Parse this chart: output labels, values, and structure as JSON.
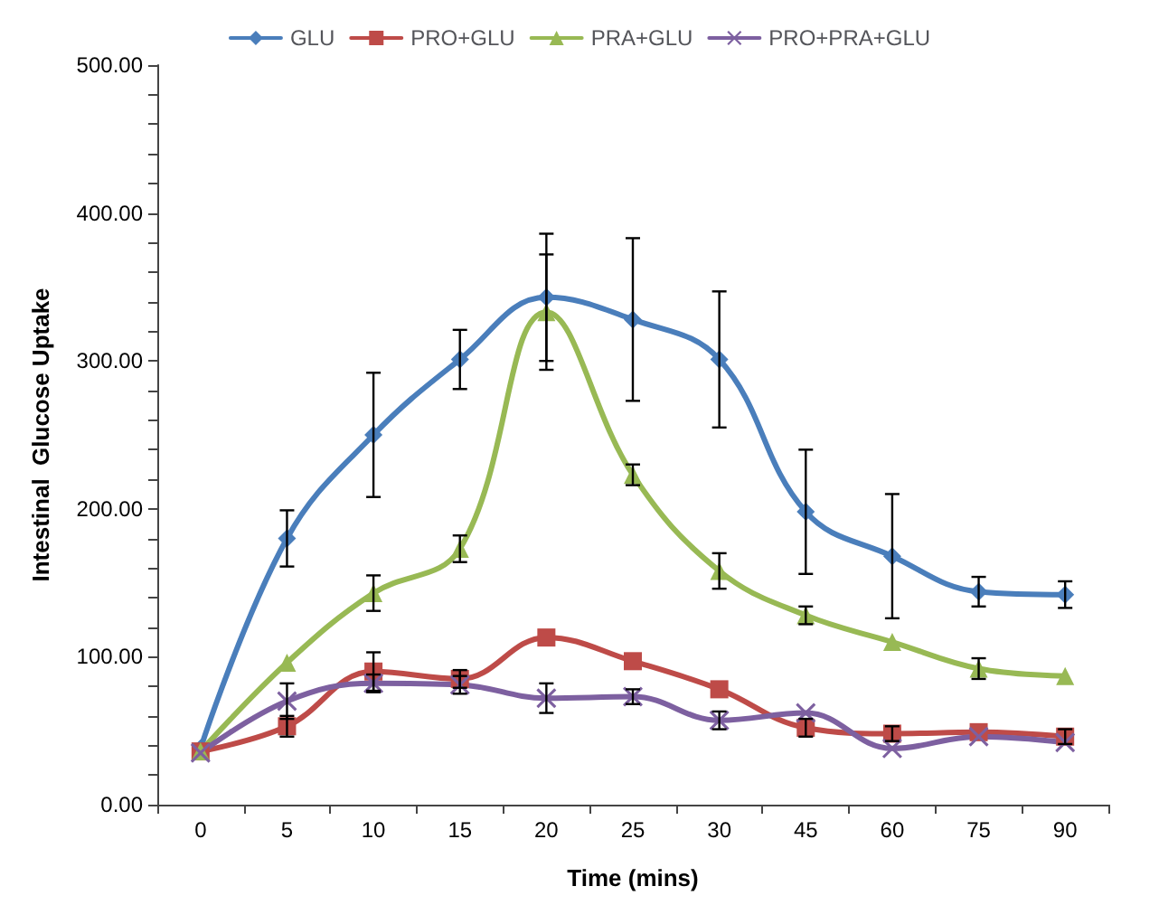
{
  "chart_data": {
    "type": "line",
    "xlabel": "Time (mins)",
    "ylabel": "Intestinal  Glucose Uptake",
    "categories": [
      "0",
      "5",
      "10",
      "15",
      "20",
      "25",
      "30",
      "45",
      "60",
      "75",
      "90"
    ],
    "series": [
      {
        "name": "GLU",
        "color": "#4a7ebb",
        "marker": "diamond",
        "values": [
          38,
          180,
          250,
          301,
          343,
          328,
          301,
          198,
          168,
          144,
          142
        ],
        "errors": [
          null,
          19,
          42,
          20,
          43,
          55,
          46,
          42,
          42,
          10,
          9
        ]
      },
      {
        "name": "PRO+GLU",
        "color": "#be4b48",
        "marker": "square",
        "values": [
          36,
          53,
          90,
          85,
          113,
          97,
          78,
          52,
          48,
          49,
          46
        ],
        "errors": [
          null,
          7,
          13,
          6,
          null,
          null,
          null,
          6,
          5,
          null,
          5
        ]
      },
      {
        "name": "PRA+GLU",
        "color": "#98b954",
        "marker": "triangle",
        "values": [
          36,
          96,
          143,
          173,
          333,
          223,
          158,
          128,
          110,
          92,
          87
        ],
        "errors": [
          null,
          null,
          12,
          9,
          39,
          7,
          12,
          6,
          null,
          7,
          null
        ]
      },
      {
        "name": "PRO+PRA+GLU",
        "color": "#7d60a0",
        "marker": "cross",
        "values": [
          35,
          70,
          82,
          81,
          72,
          73,
          57,
          62,
          38,
          46,
          42
        ],
        "errors": [
          null,
          12,
          6,
          6,
          10,
          5,
          6,
          null,
          null,
          null,
          null
        ]
      }
    ],
    "ylim": [
      0,
      500
    ],
    "yticks": [
      {
        "value": 0,
        "label": "0.00"
      },
      {
        "value": 20,
        "label": null
      },
      {
        "value": 40,
        "label": null
      },
      {
        "value": 60,
        "label": null
      },
      {
        "value": 80,
        "label": null
      },
      {
        "value": 100,
        "label": "100.00"
      },
      {
        "value": 120,
        "label": null
      },
      {
        "value": 140,
        "label": null
      },
      {
        "value": 160,
        "label": null
      },
      {
        "value": 180,
        "label": null
      },
      {
        "value": 200,
        "label": "200.00"
      },
      {
        "value": 220,
        "label": null
      },
      {
        "value": 240,
        "label": null
      },
      {
        "value": 260,
        "label": null
      },
      {
        "value": 280,
        "label": null
      },
      {
        "value": 300,
        "label": "300.00"
      },
      {
        "value": 320,
        "label": null
      },
      {
        "value": 340,
        "label": null
      },
      {
        "value": 360,
        "label": null
      },
      {
        "value": 380,
        "label": null
      },
      {
        "value": 400,
        "label": "400.00"
      },
      {
        "value": 420,
        "label": null
      },
      {
        "value": 440,
        "label": null
      },
      {
        "value": 460,
        "label": null
      },
      {
        "value": 480,
        "label": null
      },
      {
        "value": 500,
        "label": "500.00"
      }
    ],
    "grid": false,
    "legend": "top",
    "line_style": "solid"
  }
}
